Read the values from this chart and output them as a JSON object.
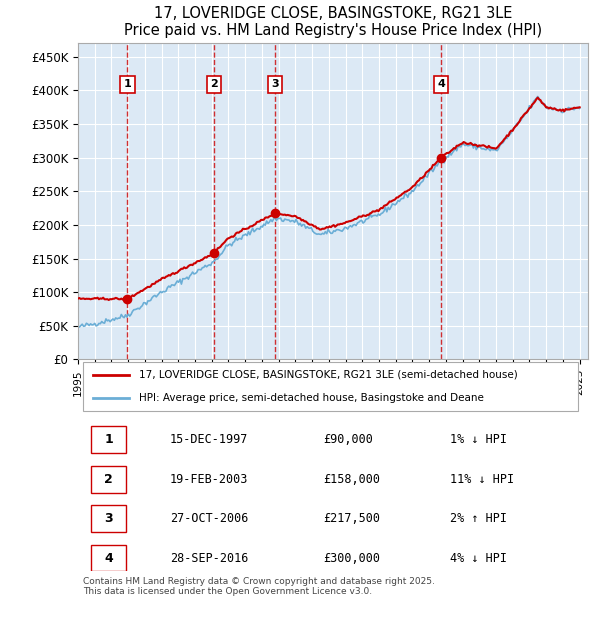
{
  "title": "17, LOVERIDGE CLOSE, BASINGSTOKE, RG21 3LE",
  "subtitle": "Price paid vs. HM Land Registry's House Price Index (HPI)",
  "ylabel": "",
  "ylim": [
    0,
    470000
  ],
  "yticks": [
    0,
    50000,
    100000,
    150000,
    200000,
    250000,
    300000,
    350000,
    400000,
    450000
  ],
  "ytick_labels": [
    "£0",
    "£50K",
    "£100K",
    "£150K",
    "£200K",
    "£250K",
    "£300K",
    "£350K",
    "£400K",
    "£450K"
  ],
  "background_color": "#dce9f5",
  "plot_bg_color": "#dce9f5",
  "grid_color": "#ffffff",
  "sale_dates": [
    "1997-12-15",
    "2003-02-19",
    "2006-10-27",
    "2016-09-28"
  ],
  "sale_prices": [
    90000,
    158000,
    217500,
    300000
  ],
  "sale_labels": [
    "1",
    "2",
    "3",
    "4"
  ],
  "legend_line1": "17, LOVERIDGE CLOSE, BASINGSTOKE, RG21 3LE (semi-detached house)",
  "legend_line2": "HPI: Average price, semi-detached house, Basingstoke and Deane",
  "footer": "Contains HM Land Registry data © Crown copyright and database right 2025.\nThis data is licensed under the Open Government Licence v3.0.",
  "table_data": [
    [
      "1",
      "15-DEC-1997",
      "£90,000",
      "1% ↓ HPI"
    ],
    [
      "2",
      "19-FEB-2003",
      "£158,000",
      "11% ↓ HPI"
    ],
    [
      "3",
      "27-OCT-2006",
      "£217,500",
      "2% ↑ HPI"
    ],
    [
      "4",
      "28-SEP-2016",
      "£300,000",
      "4% ↓ HPI"
    ]
  ],
  "hpi_color": "#6baed6",
  "sale_line_color": "#cc0000",
  "vline_color": "#cc0000",
  "marker_color": "#cc0000"
}
